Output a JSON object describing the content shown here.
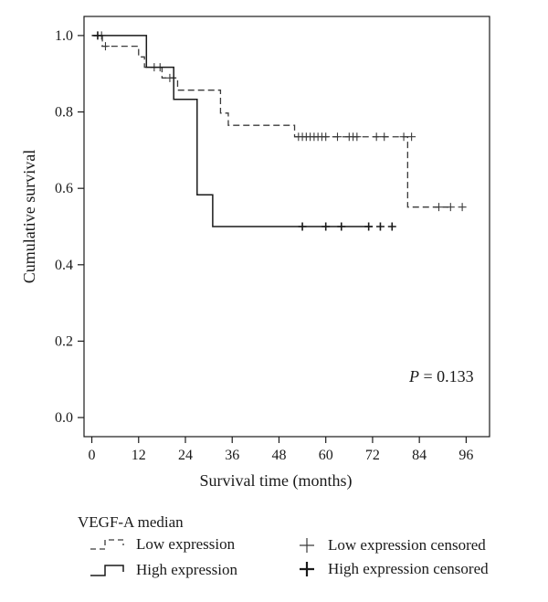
{
  "chart_data": {
    "type": "line",
    "chart_kind": "kaplan-meier survival curve",
    "xlabel": "Survival time (months)",
    "ylabel": "Cumulative survival",
    "xlim": [
      -2,
      102
    ],
    "ylim": [
      -0.05,
      1.05
    ],
    "xticks": [
      0,
      12,
      24,
      36,
      48,
      60,
      72,
      84,
      96
    ],
    "yticks": [
      0.0,
      0.2,
      0.4,
      0.6,
      0.8,
      1.0
    ],
    "ytick_labels": [
      "0.0",
      "0.2",
      "0.4",
      "0.6",
      "0.8",
      "1.0"
    ],
    "grid": false,
    "annotation": {
      "italic": "P",
      "text": " = 0.133"
    },
    "series": [
      {
        "name": "Low expression",
        "line_style": "dashed",
        "color": "#3a3a3a",
        "steps": [
          [
            0,
            1.0
          ],
          [
            2.7,
            0.972
          ],
          [
            12,
            0.944
          ],
          [
            13.5,
            0.917
          ],
          [
            18,
            0.889
          ],
          [
            22,
            0.857
          ],
          [
            33,
            0.797
          ],
          [
            35,
            0.765
          ],
          [
            52,
            0.735
          ],
          [
            81,
            0.551
          ],
          [
            91.5,
            0.551
          ]
        ],
        "censored": [
          [
            2.5,
            1.0
          ],
          [
            3.5,
            0.972
          ],
          [
            16,
            0.917
          ],
          [
            17.5,
            0.917
          ],
          [
            20,
            0.889
          ],
          [
            53,
            0.735
          ],
          [
            54,
            0.735
          ],
          [
            55,
            0.735
          ],
          [
            56,
            0.735
          ],
          [
            57,
            0.735
          ],
          [
            58,
            0.735
          ],
          [
            59,
            0.735
          ],
          [
            60,
            0.735
          ],
          [
            63,
            0.735
          ],
          [
            66,
            0.735
          ],
          [
            67,
            0.735
          ],
          [
            68,
            0.735
          ],
          [
            73,
            0.735
          ],
          [
            75,
            0.735
          ],
          [
            80,
            0.735
          ],
          [
            82,
            0.735
          ],
          [
            89,
            0.551
          ],
          [
            92,
            0.551
          ],
          [
            95,
            0.551
          ]
        ]
      },
      {
        "name": "High expression",
        "line_style": "solid",
        "color": "#1a1a1a",
        "steps": [
          [
            0,
            1.0
          ],
          [
            14,
            0.917
          ],
          [
            21,
            0.833
          ],
          [
            27,
            0.583
          ],
          [
            31,
            0.5
          ],
          [
            72,
            0.5
          ]
        ],
        "censored": [
          [
            1.5,
            1.0
          ],
          [
            54,
            0.5
          ],
          [
            60,
            0.5
          ],
          [
            64,
            0.5
          ],
          [
            71,
            0.5
          ],
          [
            74,
            0.5
          ],
          [
            77,
            0.5
          ]
        ]
      }
    ]
  },
  "legend": {
    "title": "VEGF-A median",
    "items": [
      {
        "label": "Low expression",
        "marker": "dashed-step"
      },
      {
        "label": "High expression",
        "marker": "solid-step"
      },
      {
        "label": "Low expression censored",
        "marker": "thin-plus"
      },
      {
        "label": "High expression censored",
        "marker": "bold-plus"
      }
    ]
  }
}
